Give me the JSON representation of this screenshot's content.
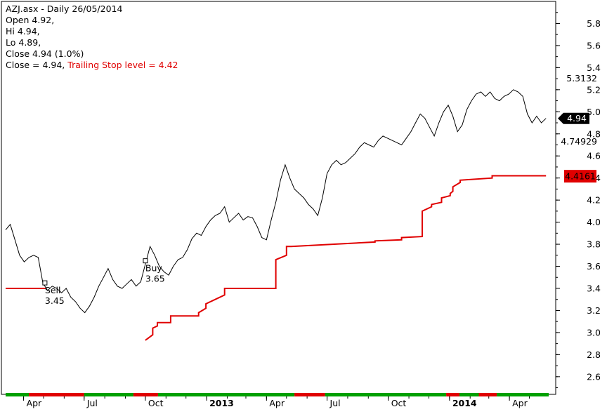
{
  "header": {
    "title": "AZJ.asx - Daily 26/05/2014",
    "open": "Open 4.92,",
    "hi": "Hi 4.94,",
    "lo": "Lo 4.89,",
    "close": "Close 4.94 (1.0%)",
    "close_eq": "Close = 4.94,",
    "stop_label": "Trailing Stop level = 4.42"
  },
  "colors": {
    "price": "#000000",
    "stop": "#e00000",
    "bull": "#00a000",
    "bear": "#e00000",
    "axis": "#000000"
  },
  "chart_data": {
    "type": "line",
    "title": "AZJ.asx - Daily 26/05/2014",
    "y_ticks": [
      "2.6",
      "2.8",
      "3.0",
      "3.2",
      "3.4",
      "3.6",
      "3.8",
      "4.0",
      "4.2",
      "4.4",
      "4.6",
      "4.8",
      "5.0",
      "5.2",
      "5.4",
      "5.6",
      "5.8"
    ],
    "x_ticks": [
      "Apr",
      "Jul",
      "Oct",
      "2013",
      "Apr",
      "Jul",
      "Oct",
      "2014",
      "Apr"
    ],
    "bold_x_ticks": [
      "2013",
      "2014"
    ],
    "ylim": [
      2.44,
      6.0
    ],
    "axis_labels": {
      "high": "5.3132",
      "low": "4.74929",
      "close": "4.94",
      "stop": "4.4161"
    },
    "annotations": [
      {
        "label": "Sell",
        "price": "3.45",
        "date": "2012-05-03",
        "y": 3.45
      },
      {
        "label": "Buy",
        "price": "3.65",
        "date": "2012-10-01",
        "y": 3.65
      }
    ],
    "series": [
      {
        "name": "AZJ.asx",
        "x": [
          "2012-03-05",
          "2012-03-12",
          "2012-03-19",
          "2012-03-26",
          "2012-04-02",
          "2012-04-09",
          "2012-04-16",
          "2012-04-23",
          "2012-04-30",
          "2012-05-07",
          "2012-05-14",
          "2012-05-21",
          "2012-05-28",
          "2012-06-04",
          "2012-06-11",
          "2012-06-18",
          "2012-06-25",
          "2012-07-02",
          "2012-07-09",
          "2012-07-16",
          "2012-07-23",
          "2012-07-30",
          "2012-08-06",
          "2012-08-13",
          "2012-08-20",
          "2012-08-27",
          "2012-09-03",
          "2012-09-10",
          "2012-09-17",
          "2012-09-24",
          "2012-10-01",
          "2012-10-08",
          "2012-10-15",
          "2012-10-22",
          "2012-10-29",
          "2012-11-05",
          "2012-11-12",
          "2012-11-19",
          "2012-11-26",
          "2012-12-03",
          "2012-12-10",
          "2012-12-17",
          "2012-12-24",
          "2012-12-31",
          "2013-01-07",
          "2013-01-14",
          "2013-01-21",
          "2013-01-28",
          "2013-02-04",
          "2013-02-11",
          "2013-02-18",
          "2013-02-25",
          "2013-03-04",
          "2013-03-11",
          "2013-03-18",
          "2013-03-25",
          "2013-04-01",
          "2013-04-08",
          "2013-04-15",
          "2013-04-22",
          "2013-04-29",
          "2013-05-06",
          "2013-05-13",
          "2013-05-20",
          "2013-05-27",
          "2013-06-03",
          "2013-06-10",
          "2013-06-17",
          "2013-06-24",
          "2013-07-01",
          "2013-07-08",
          "2013-07-15",
          "2013-07-22",
          "2013-07-29",
          "2013-08-05",
          "2013-08-12",
          "2013-08-19",
          "2013-08-26",
          "2013-09-02",
          "2013-09-09",
          "2013-09-16",
          "2013-09-23",
          "2013-09-30",
          "2013-10-07",
          "2013-10-14",
          "2013-10-21",
          "2013-10-28",
          "2013-11-04",
          "2013-11-11",
          "2013-11-18",
          "2013-11-25",
          "2013-12-02",
          "2013-12-09",
          "2013-12-16",
          "2013-12-23",
          "2013-12-30",
          "2014-01-06",
          "2014-01-13",
          "2014-01-20",
          "2014-01-27",
          "2014-02-03",
          "2014-02-10",
          "2014-02-17",
          "2014-02-24",
          "2014-03-03",
          "2014-03-10",
          "2014-03-17",
          "2014-03-24",
          "2014-03-31",
          "2014-04-07",
          "2014-04-14",
          "2014-04-21",
          "2014-04-28",
          "2014-05-05",
          "2014-05-12",
          "2014-05-19",
          "2014-05-26"
        ],
        "y": [
          3.93,
          3.98,
          3.84,
          3.7,
          3.64,
          3.68,
          3.7,
          3.68,
          3.45,
          3.38,
          3.42,
          3.4,
          3.36,
          3.4,
          3.32,
          3.28,
          3.22,
          3.18,
          3.24,
          3.32,
          3.42,
          3.5,
          3.58,
          3.48,
          3.42,
          3.4,
          3.44,
          3.48,
          3.42,
          3.46,
          3.62,
          3.78,
          3.7,
          3.6,
          3.55,
          3.52,
          3.6,
          3.66,
          3.68,
          3.75,
          3.85,
          3.9,
          3.88,
          3.96,
          4.02,
          4.06,
          4.08,
          4.14,
          4.0,
          4.04,
          4.08,
          4.02,
          4.05,
          4.04,
          3.96,
          3.86,
          3.84,
          4.02,
          4.18,
          4.38,
          4.52,
          4.4,
          4.3,
          4.26,
          4.22,
          4.16,
          4.12,
          4.06,
          4.22,
          4.44,
          4.52,
          4.56,
          4.52,
          4.54,
          4.58,
          4.62,
          4.68,
          4.72,
          4.7,
          4.68,
          4.74,
          4.78,
          4.76,
          4.74,
          4.72,
          4.7,
          4.76,
          4.82,
          4.9,
          4.98,
          4.94,
          4.86,
          4.78,
          4.9,
          5.0,
          5.06,
          4.96,
          4.82,
          4.88,
          5.02,
          5.1,
          5.16,
          5.18,
          5.14,
          5.18,
          5.12,
          5.1,
          5.14,
          5.16,
          5.2,
          5.18,
          5.14,
          4.98,
          4.9,
          4.96,
          4.9,
          4.94
        ]
      },
      {
        "name": "Trailing Stop level",
        "segments": [
          {
            "x": [
              "2012-03-05",
              "2012-05-04"
            ],
            "y": [
              3.4,
              3.4
            ]
          },
          {
            "x": [
              "2012-10-01",
              "2012-10-12",
              "2012-10-12",
              "2012-10-19",
              "2012-10-19",
              "2012-11-08",
              "2012-11-08",
              "2012-12-20",
              "2012-12-20",
              "2012-12-31",
              "2012-12-31",
              "2013-01-14",
              "2013-01-14",
              "2013-01-28",
              "2013-01-28",
              "2013-02-11",
              "2013-02-11",
              "2013-04-15",
              "2013-04-15",
              "2013-05-01",
              "2013-05-01",
              "2013-05-08",
              "2013-05-08",
              "2013-09-11",
              "2013-09-11",
              "2013-10-21",
              "2013-10-21",
              "2013-11-21",
              "2013-11-21",
              "2013-12-05",
              "2013-12-05",
              "2013-12-20",
              "2013-12-20",
              "2014-01-02",
              "2014-01-02",
              "2014-01-06",
              "2014-01-06",
              "2014-01-17",
              "2014-01-17",
              "2014-03-06",
              "2014-03-06",
              "2014-05-26"
            ],
            "y": [
              2.93,
              2.98,
              3.04,
              3.06,
              3.09,
              3.09,
              3.15,
              3.15,
              3.18,
              3.22,
              3.26,
              3.3,
              3.3,
              3.34,
              3.4,
              3.4,
              3.4,
              3.4,
              3.66,
              3.7,
              3.78,
              3.78,
              3.78,
              3.82,
              3.83,
              3.84,
              3.86,
              3.87,
              4.1,
              4.14,
              4.16,
              4.18,
              4.22,
              4.24,
              4.26,
              4.28,
              4.32,
              4.36,
              4.38,
              4.4,
              4.42,
              4.42
            ]
          }
        ]
      }
    ],
    "signal_bar": [
      {
        "from": "2012-03-05",
        "to": "2012-04-09",
        "state": "bull"
      },
      {
        "from": "2012-04-09",
        "to": "2012-07-01",
        "state": "bear"
      },
      {
        "from": "2012-07-01",
        "to": "2012-09-13",
        "state": "bull"
      },
      {
        "from": "2012-09-13",
        "to": "2012-10-20",
        "state": "bear"
      },
      {
        "from": "2012-10-20",
        "to": "2013-05-13",
        "state": "bull"
      },
      {
        "from": "2013-05-13",
        "to": "2013-06-28",
        "state": "bear"
      },
      {
        "from": "2013-06-28",
        "to": "2013-12-27",
        "state": "bull"
      },
      {
        "from": "2013-12-27",
        "to": "2014-01-16",
        "state": "bear"
      },
      {
        "from": "2014-01-16",
        "to": "2014-02-14",
        "state": "bull"
      },
      {
        "from": "2014-02-14",
        "to": "2014-03-13",
        "state": "bear"
      },
      {
        "from": "2014-03-13",
        "to": "2014-05-30",
        "state": "bull"
      }
    ]
  }
}
